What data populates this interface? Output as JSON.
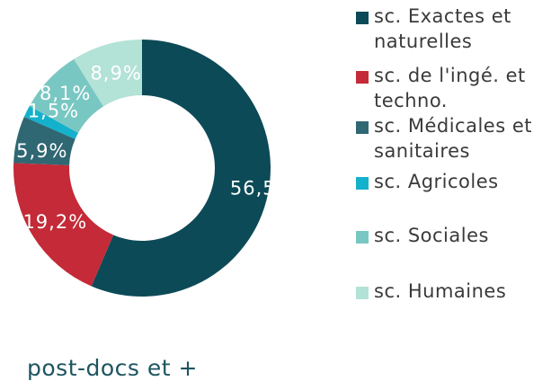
{
  "chart_data": {
    "type": "pie",
    "style": "donut",
    "legend_position": "right",
    "caption": "post-docs et +",
    "slices": [
      {
        "name": "sc. Exactes et naturelles",
        "value": 56.5,
        "label": "56,5%",
        "color": "#0c4a57"
      },
      {
        "name": "sc. de l'ingé. et techno.",
        "value": 19.2,
        "label": "19,2%",
        "color": "#c42a37"
      },
      {
        "name": "sc. Médicales et sanitaires",
        "value": 5.9,
        "label": "5,9%",
        "color": "#2f6773"
      },
      {
        "name": "sc. Agricoles",
        "value": 1.5,
        "label": "1,5%",
        "color": "#14b1cc"
      },
      {
        "name": "sc. Sociales",
        "value": 8.1,
        "label": "8,1%",
        "color": "#79c7c3"
      },
      {
        "name": "sc. Humaines",
        "value": 8.9,
        "label": "8,9%",
        "color": "#b3e2d6"
      }
    ]
  }
}
